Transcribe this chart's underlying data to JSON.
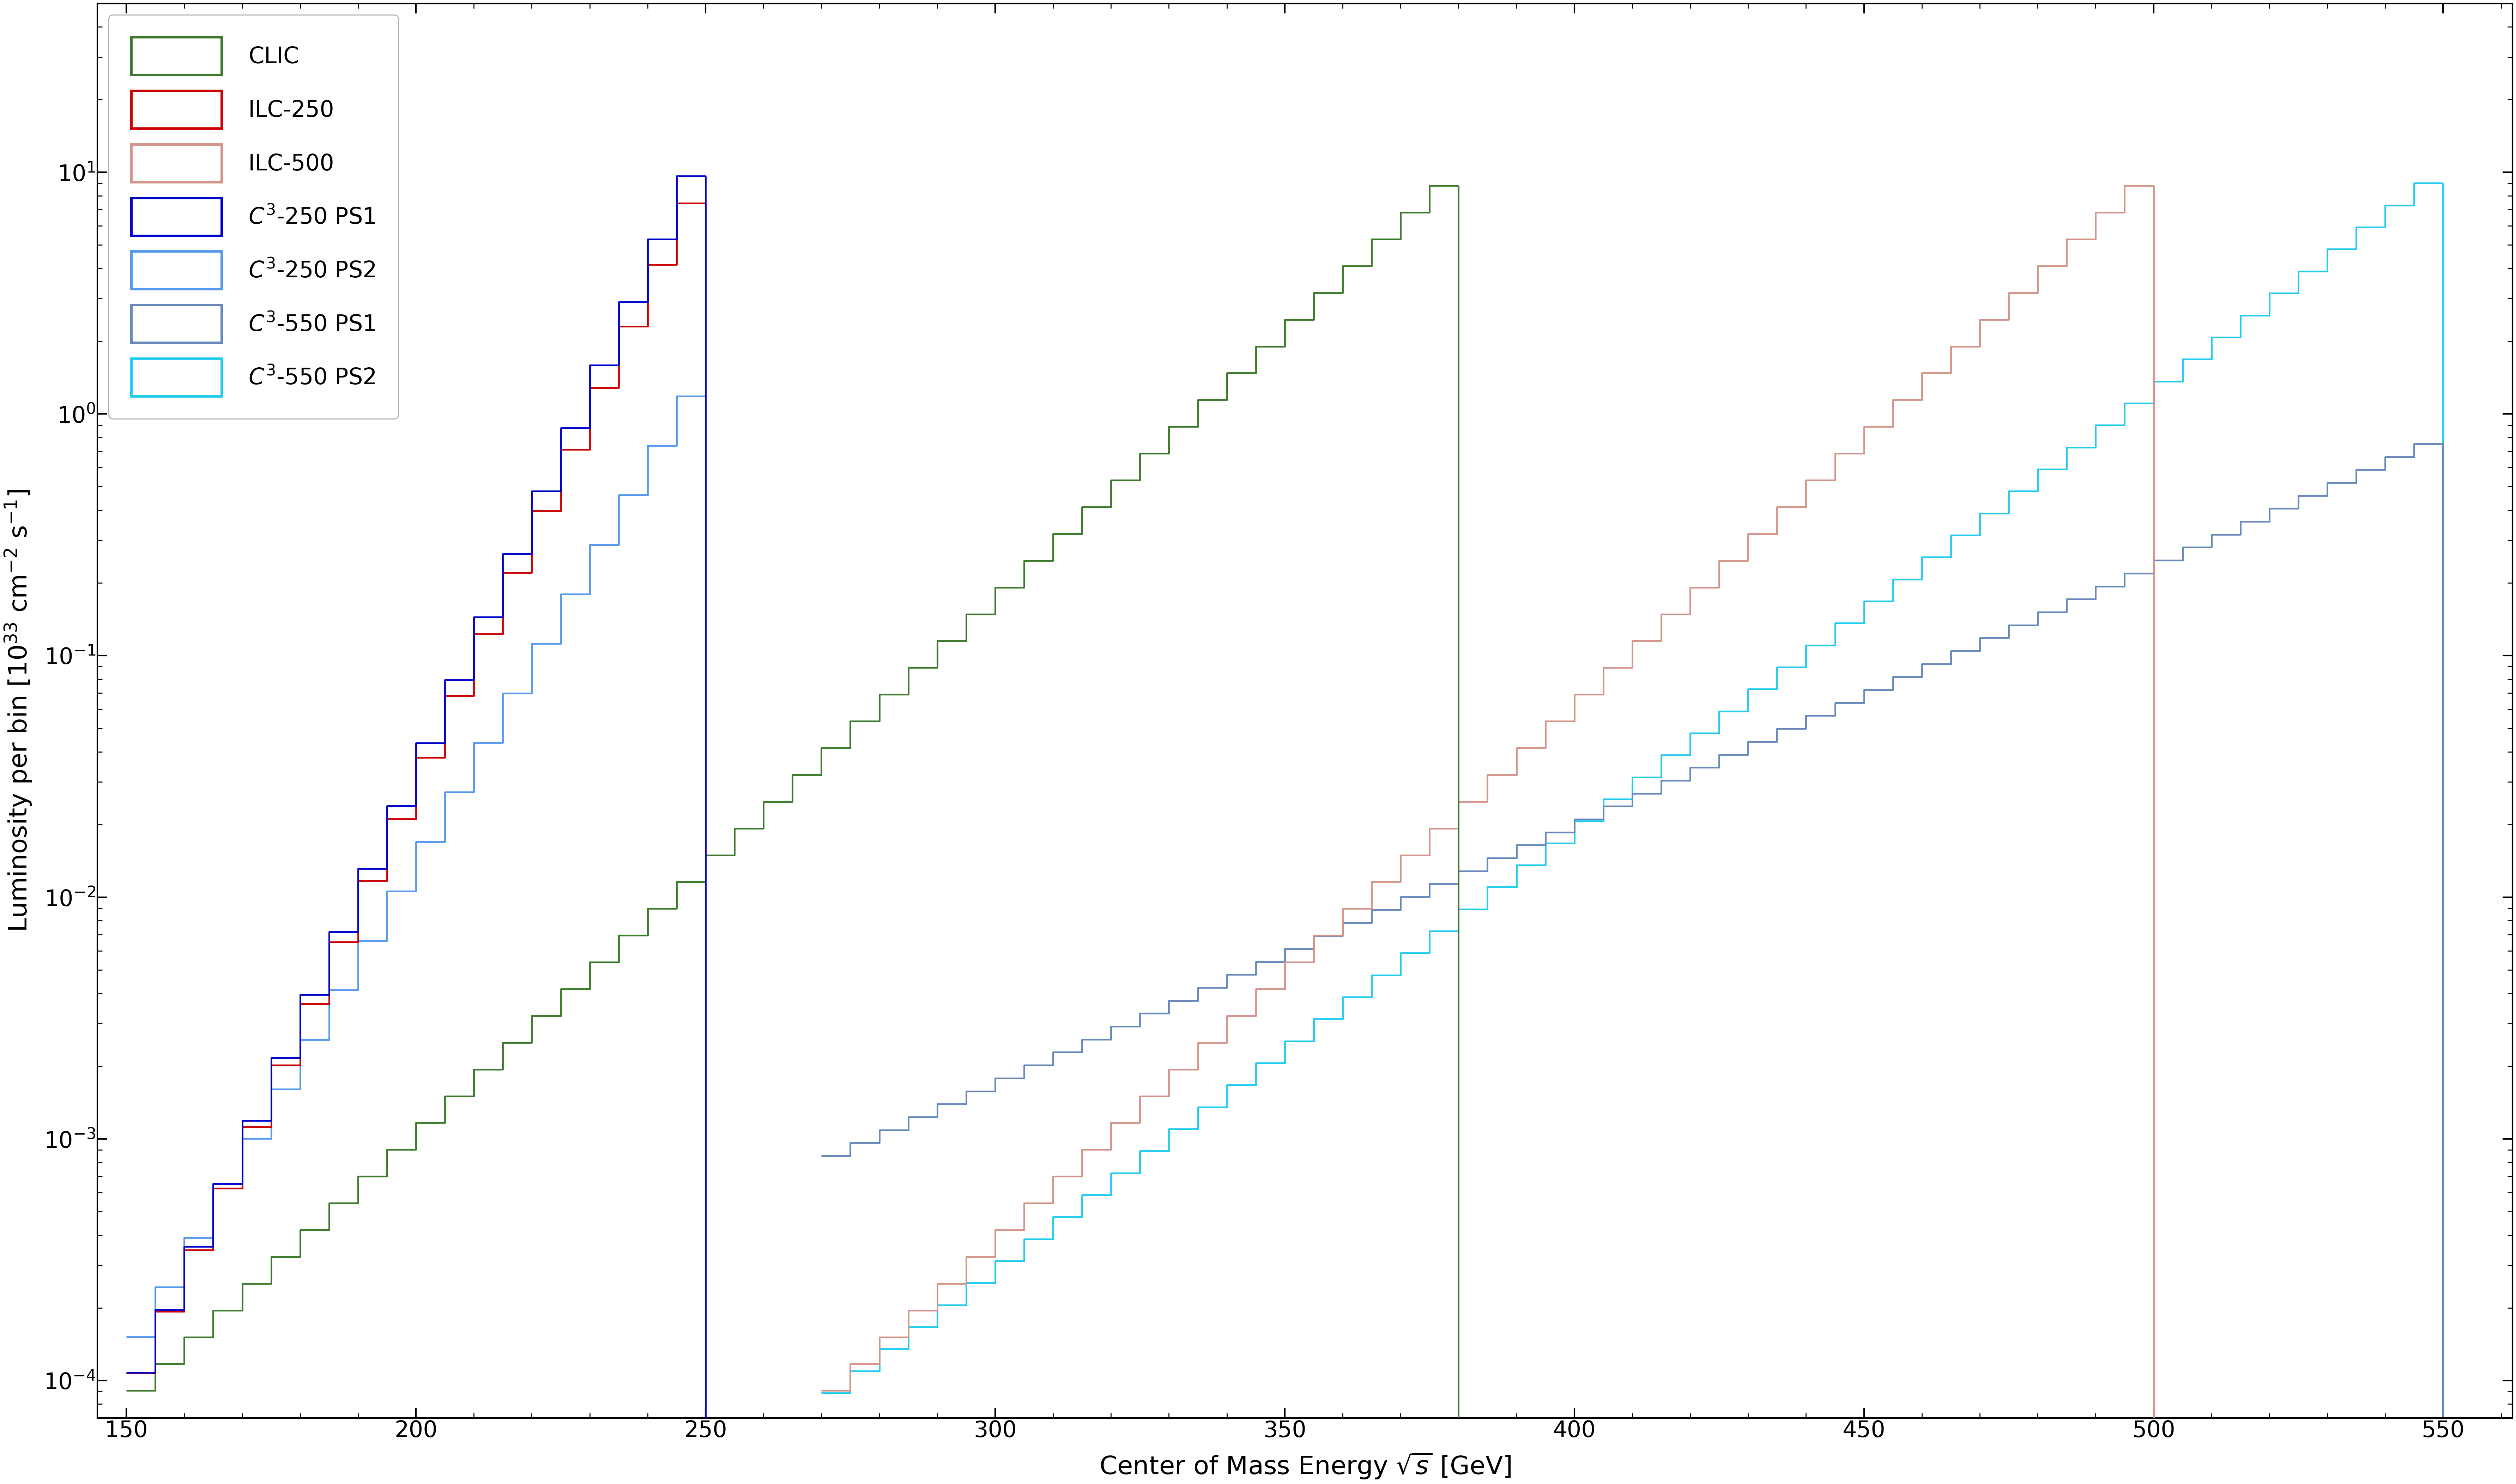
{
  "xlabel": "Center of Mass Energy $\\sqrt{s}$ [GeV]",
  "ylabel": "Luminosity per bin [$10^{33}$ cm$^{-2}$ s$^{-1}$]",
  "xlim": [
    145,
    562
  ],
  "ylim": [
    7e-05,
    50
  ],
  "series": [
    {
      "name": "CLIC",
      "color": "#3a7a2a",
      "lw": 3.5,
      "start": 150,
      "end": 380,
      "peak": 380,
      "bin_width": 5,
      "peak_value": 10.0,
      "base_value": 8e-05,
      "zorder": 4
    },
    {
      "name": "ILC-250",
      "color": "#cc0000",
      "lw": 3.5,
      "start": 150,
      "end": 250,
      "peak": 250,
      "bin_width": 5,
      "peak_value": 10.0,
      "base_value": 8e-05,
      "zorder": 6
    },
    {
      "name": "ILC-500",
      "color": "#d4948a",
      "lw": 3.5,
      "start": 270,
      "end": 500,
      "peak": 500,
      "bin_width": 5,
      "peak_value": 10.0,
      "base_value": 8e-05,
      "zorder": 3
    },
    {
      "name": "C3-250 PS1",
      "color": "#0000cc",
      "lw": 3.5,
      "start": 150,
      "end": 250,
      "peak": 250,
      "bin_width": 5,
      "peak_value": 13.0,
      "base_value": 8e-05,
      "zorder": 7
    },
    {
      "name": "C3-250 PS2",
      "color": "#5599ee",
      "lw": 3.5,
      "start": 150,
      "end": 250,
      "peak": 250,
      "bin_width": 5,
      "peak_value": 1.5,
      "base_value": 0.00012,
      "zorder": 5
    },
    {
      "name": "C3-550 PS1",
      "color": "#6688bb",
      "lw": 3.5,
      "start": 270,
      "end": 550,
      "peak": 550,
      "bin_width": 5,
      "peak_value": 0.8,
      "base_value": 0.0008,
      "zorder": 2
    },
    {
      "name": "C3-550 PS2",
      "color": "#22ccee",
      "lw": 3.5,
      "start": 270,
      "end": 550,
      "peak": 550,
      "bin_width": 5,
      "peak_value": 10.0,
      "base_value": 8e-05,
      "zorder": 1
    }
  ],
  "legend_names": [
    "CLIC",
    "ILC-250",
    "ILC-500",
    "$C^3$-250 PS1",
    "$C^3$-250 PS2",
    "$C^3$-550 PS1",
    "$C^3$-550 PS2"
  ],
  "legend_colors": [
    "#3a7a2a",
    "#cc0000",
    "#d4948a",
    "#0000cc",
    "#5599ee",
    "#6688bb",
    "#22ccee"
  ],
  "figwidth": 71.68,
  "figheight": 42.42,
  "dpi": 100
}
